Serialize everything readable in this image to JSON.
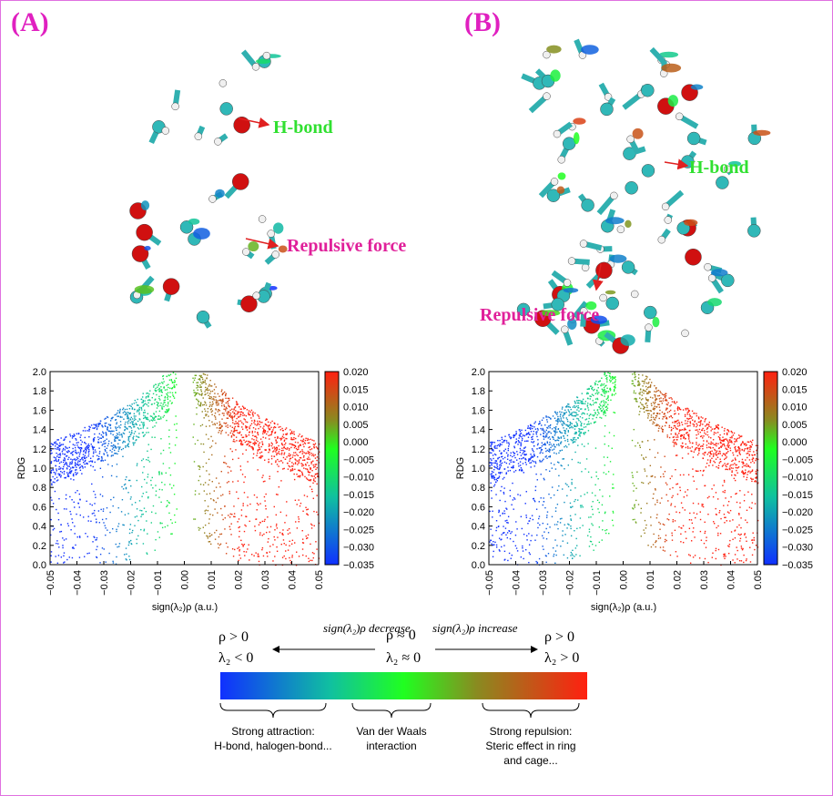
{
  "panels": [
    {
      "label": "(A)",
      "annotations": [
        "H-bond",
        "Repulsive force"
      ],
      "plot": {
        "ylabel": "RDG",
        "xlabel": "sign(λ₂)ρ (a.u.)",
        "yticks": [
          "0.0",
          "0.2",
          "0.4",
          "0.6",
          "0.8",
          "1.0",
          "1.2",
          "1.4",
          "1.6",
          "1.8",
          "2.0"
        ],
        "xticks": [
          "−0.05",
          "−0.04",
          "−0.03",
          "−0.02",
          "−0.01",
          "0.00",
          "0.01",
          "0.02",
          "0.03",
          "0.04",
          "0.05"
        ],
        "colorbar_ticks": [
          "0.020",
          "0.015",
          "0.010",
          "0.005",
          "0.000",
          "−0.005",
          "−0.010",
          "−0.015",
          "−0.020",
          "−0.025",
          "−0.030",
          "−0.035"
        ]
      }
    },
    {
      "label": "(B)",
      "annotations": [
        "H-bond",
        "Repulsive force"
      ],
      "plot": {
        "ylabel": "RDG",
        "xlabel": "sign(λ₂)ρ (a.u.)",
        "yticks": [
          "0.0",
          "0.2",
          "0.4",
          "0.6",
          "0.8",
          "1.0",
          "1.2",
          "1.4",
          "1.6",
          "1.8",
          "2.0"
        ],
        "xticks": [
          "−0.05",
          "−0.04",
          "−0.03",
          "−0.02",
          "−0.01",
          "0.00",
          "0.01",
          "0.02",
          "0.03",
          "0.04",
          "0.05"
        ],
        "colorbar_ticks": [
          "0.020",
          "0.015",
          "0.010",
          "0.005",
          "0.000",
          "−0.005",
          "−0.010",
          "−0.015",
          "−0.020",
          "−0.025",
          "−0.030",
          "−0.035"
        ]
      }
    }
  ],
  "legend": {
    "left_top": "ρ > 0",
    "left_bottom": "λ₂ < 0",
    "decrease": "sign(λ₂)ρ decrease",
    "mid_top": "ρ ≈ 0",
    "mid_bottom": "λ₂ ≈ 0",
    "increase": "sign(λ₂)ρ increase",
    "right_top": "ρ > 0",
    "right_bottom": "λ₂ > 0",
    "regions": [
      [
        "Strong attraction:",
        "H-bond, halogen-bond..."
      ],
      [
        "Van der Waals",
        "interaction"
      ],
      [
        "Strong repulsion:",
        "Steric effect in ring",
        "and cage..."
      ]
    ]
  }
}
